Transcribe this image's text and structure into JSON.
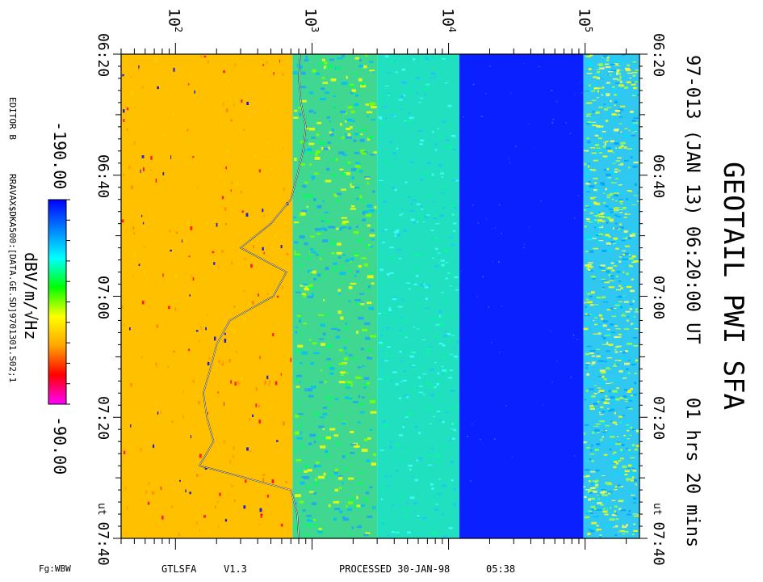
{
  "chart_data": {
    "type": "heatmap",
    "title": "GEOTAIL PWI SFA",
    "subtitle": "97-013 (JAN 13) 06:20:00 UT",
    "span": "01 hrs 20 mins",
    "x_axis": {
      "scale": "log",
      "range_hz": [
        40,
        250000
      ],
      "tick_labels": [
        {
          "base": "10",
          "exp": "2",
          "value": 100
        },
        {
          "base": "10",
          "exp": "3",
          "value": 1000
        },
        {
          "base": "10",
          "exp": "4",
          "value": 10000
        },
        {
          "base": "10",
          "exp": "5",
          "value": 100000
        }
      ]
    },
    "time_axis": {
      "start": "06:20",
      "end": "07:40",
      "tick_labels": [
        "06:20",
        "06:40",
        "07:00",
        "07:20",
        "07:40"
      ],
      "tick_minutes": [
        0,
        20,
        40,
        60,
        80
      ],
      "end_label_prefix": "ut"
    },
    "colorbar": {
      "label": "dBV/m/√Hz",
      "min_label": "-190.00",
      "max_label": "-90.00",
      "range": [
        -190,
        -90
      ],
      "colors": [
        "#ff00ff",
        "#ff0000",
        "#ffa500",
        "#ffff00",
        "#00ff00",
        "#00ffff",
        "#0080ff",
        "#0000ff"
      ]
    },
    "bands": [
      {
        "name": "band-1",
        "f_lo": 40,
        "f_hi": 720,
        "color": "#ffc000"
      },
      {
        "name": "band-2",
        "f_lo": 720,
        "f_hi": 3000,
        "color": "#40d890"
      },
      {
        "name": "band-3",
        "f_lo": 3000,
        "f_hi": 12000,
        "color": "#20e0c0"
      },
      {
        "name": "band-4",
        "f_lo": 12000,
        "f_hi": 97000,
        "color": "#0a20ff"
      },
      {
        "name": "band-5",
        "f_lo": 97000,
        "f_hi": 250000,
        "color": "#30c8f0"
      }
    ],
    "overlay_trace": {
      "description": "white/black line",
      "points": [
        [
          0,
          820
        ],
        [
          4,
          800
        ],
        [
          8,
          830
        ],
        [
          12,
          900
        ],
        [
          16,
          860
        ],
        [
          20,
          780
        ],
        [
          24,
          700
        ],
        [
          28,
          500
        ],
        [
          32,
          300
        ],
        [
          36,
          650
        ],
        [
          40,
          520
        ],
        [
          44,
          250
        ],
        [
          48,
          200
        ],
        [
          52,
          180
        ],
        [
          56,
          160
        ],
        [
          60,
          170
        ],
        [
          64,
          190
        ],
        [
          68,
          150
        ],
        [
          72,
          700
        ],
        [
          76,
          780
        ],
        [
          80,
          800
        ]
      ]
    }
  },
  "side_text": {
    "editor": "EDITOR B",
    "file": "RRAVAX$DKA500:[DATA.GE.SD]9701301.S02;1"
  },
  "footer": {
    "fg": "Fg:WBW",
    "program": "GTLSFA",
    "version": "V1.3",
    "processed": "PROCESSED 30-JAN-98",
    "processed_time": "05:38"
  }
}
